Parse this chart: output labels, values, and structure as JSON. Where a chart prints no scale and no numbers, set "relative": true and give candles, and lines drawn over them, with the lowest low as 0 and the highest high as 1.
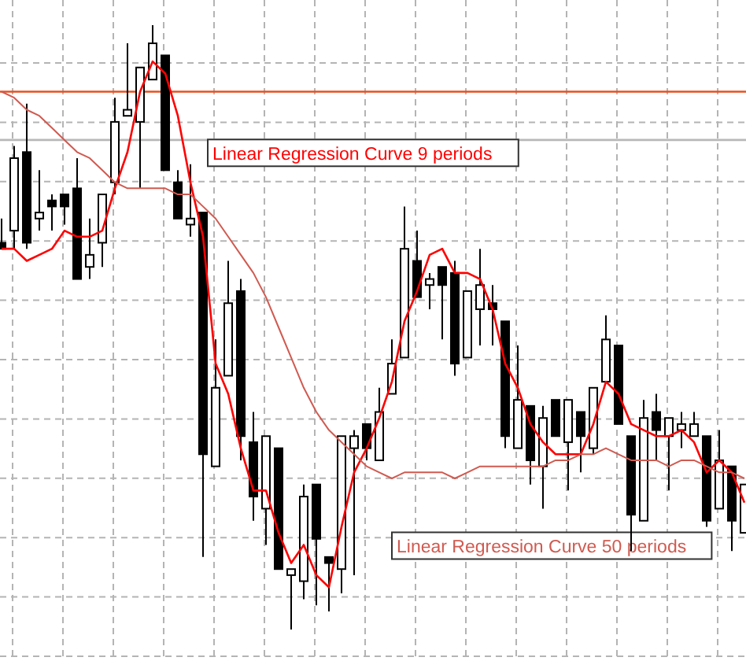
{
  "chart_data": {
    "type": "candlestick",
    "relative": true,
    "grid": true,
    "categories": [
      null,
      null,
      null,
      null,
      null,
      null,
      null,
      null,
      null,
      null,
      null,
      null,
      null,
      null,
      null,
      null,
      null,
      null,
      null,
      null,
      null,
      null,
      null,
      null,
      null,
      null,
      null,
      null,
      null,
      null,
      null,
      null,
      null,
      null,
      null,
      null,
      null,
      null,
      null,
      null,
      null,
      null,
      null,
      null,
      null,
      null,
      null,
      null,
      null,
      null,
      null,
      null,
      null,
      null,
      null,
      null,
      null,
      null,
      null,
      null
    ],
    "ohlc": [
      [
        0.64,
        0.68,
        0.63,
        0.63
      ],
      [
        0.66,
        0.8,
        0.63,
        0.78
      ],
      [
        0.79,
        0.87,
        0.63,
        0.64
      ],
      [
        0.68,
        0.76,
        0.66,
        0.69
      ],
      [
        0.71,
        0.72,
        0.66,
        0.7
      ],
      [
        0.72,
        0.72,
        0.67,
        0.7
      ],
      [
        0.73,
        0.78,
        0.58,
        0.58
      ],
      [
        0.6,
        0.68,
        0.58,
        0.62
      ],
      [
        0.64,
        0.72,
        0.6,
        0.72
      ],
      [
        0.74,
        0.88,
        0.72,
        0.84
      ],
      [
        0.85,
        0.97,
        0.85,
        0.86
      ],
      [
        0.84,
        0.93,
        0.73,
        0.93
      ],
      [
        0.91,
        1.0,
        0.91,
        0.97
      ],
      [
        0.95,
        0.95,
        0.76,
        0.76
      ],
      [
        0.74,
        0.76,
        0.68,
        0.68
      ],
      [
        0.67,
        0.77,
        0.65,
        0.68
      ],
      [
        0.69,
        0.69,
        0.12,
        0.29
      ],
      [
        0.27,
        0.48,
        0.27,
        0.4
      ],
      [
        0.42,
        0.61,
        0.42,
        0.54
      ],
      [
        0.56,
        0.58,
        0.28,
        0.32
      ],
      [
        0.31,
        0.36,
        0.18,
        0.22
      ],
      [
        0.2,
        0.32,
        0.14,
        0.32
      ],
      [
        0.3,
        0.3,
        0.1,
        0.1
      ],
      [
        0.09,
        0.1,
        0.0,
        0.1
      ],
      [
        0.08,
        0.24,
        0.05,
        0.22
      ],
      [
        0.24,
        0.24,
        0.04,
        0.15
      ],
      [
        0.12,
        0.12,
        0.03,
        0.11
      ],
      [
        0.1,
        0.32,
        0.06,
        0.32
      ],
      [
        0.3,
        0.33,
        0.09,
        0.32
      ],
      [
        0.34,
        0.34,
        0.28,
        0.3
      ],
      [
        0.28,
        0.4,
        0.28,
        0.36
      ],
      [
        0.39,
        0.48,
        0.39,
        0.44
      ],
      [
        0.45,
        0.7,
        0.45,
        0.63
      ],
      [
        0.61,
        0.66,
        0.55,
        0.55
      ],
      [
        0.57,
        0.59,
        0.53,
        0.58
      ],
      [
        0.6,
        0.6,
        0.48,
        0.57
      ],
      [
        0.59,
        0.61,
        0.42,
        0.44
      ],
      [
        0.45,
        0.56,
        0.45,
        0.56
      ],
      [
        0.53,
        0.63,
        0.47,
        0.57
      ],
      [
        0.54,
        0.57,
        0.47,
        0.53
      ],
      [
        0.51,
        0.51,
        0.3,
        0.32
      ],
      [
        0.3,
        0.47,
        0.3,
        0.38
      ],
      [
        0.37,
        0.37,
        0.24,
        0.28
      ],
      [
        0.27,
        0.37,
        0.2,
        0.35
      ],
      [
        0.38,
        0.38,
        0.32,
        0.32
      ],
      [
        0.31,
        0.38,
        0.23,
        0.38
      ],
      [
        0.36,
        0.36,
        0.26,
        0.32
      ],
      [
        0.3,
        0.4,
        0.29,
        0.4
      ],
      [
        0.41,
        0.52,
        0.41,
        0.48
      ],
      [
        0.47,
        0.47,
        0.34,
        0.34
      ],
      [
        0.32,
        0.32,
        0.13,
        0.19
      ],
      [
        0.18,
        0.38,
        0.18,
        0.35
      ],
      [
        0.36,
        0.39,
        0.28,
        0.33
      ],
      [
        0.32,
        0.35,
        0.23,
        0.35
      ],
      [
        0.33,
        0.36,
        0.3,
        0.34
      ],
      [
        0.32,
        0.36,
        0.32,
        0.34
      ],
      [
        0.32,
        0.32,
        0.17,
        0.18
      ],
      [
        0.2,
        0.33,
        0.2,
        0.28
      ],
      [
        0.27,
        0.27,
        0.13,
        0.18
      ],
      [
        0.16,
        0.24,
        0.16,
        0.24
      ]
    ],
    "series": [
      {
        "type": "line",
        "name": "Linear Regression Curve 9 periods",
        "color": "#ff0000",
        "values": [
          0.63,
          0.63,
          0.61,
          0.62,
          0.63,
          0.66,
          0.65,
          0.65,
          0.66,
          0.73,
          0.79,
          0.89,
          0.94,
          0.92,
          0.85,
          0.74,
          0.65,
          0.44,
          0.39,
          0.3,
          0.23,
          0.23,
          0.16,
          0.11,
          0.14,
          0.09,
          0.07,
          0.17,
          0.26,
          0.3,
          0.35,
          0.41,
          0.51,
          0.56,
          0.62,
          0.63,
          0.59,
          0.59,
          0.58,
          0.53,
          0.44,
          0.4,
          0.34,
          0.31,
          0.29,
          0.29,
          0.29,
          0.34,
          0.41,
          0.39,
          0.34,
          0.33,
          0.32,
          0.32,
          0.33,
          0.31,
          0.26,
          0.28,
          0.26,
          0.21
        ]
      },
      {
        "type": "line",
        "name": "Linear Regression Curve 50 periods",
        "color": "#d05a50",
        "values": [
          0.89,
          0.88,
          0.86,
          0.85,
          0.83,
          0.81,
          0.79,
          0.78,
          0.76,
          0.74,
          0.73,
          0.73,
          0.73,
          0.73,
          0.72,
          0.72,
          0.7,
          0.68,
          0.65,
          0.62,
          0.59,
          0.55,
          0.5,
          0.45,
          0.4,
          0.36,
          0.33,
          0.31,
          0.29,
          0.27,
          0.26,
          0.25,
          0.26,
          0.26,
          0.26,
          0.26,
          0.25,
          0.26,
          0.27,
          0.27,
          0.27,
          0.27,
          0.27,
          0.27,
          0.28,
          0.28,
          0.29,
          0.29,
          0.3,
          0.29,
          0.28,
          0.28,
          0.28,
          0.27,
          0.28,
          0.28,
          0.27,
          0.26,
          0.26,
          0.25
        ]
      }
    ],
    "ref_lines": [
      {
        "axis": "y",
        "value": 0.89,
        "color": "#e8501e"
      },
      {
        "axis": "y",
        "value": 0.81,
        "color": "#b8b8b8"
      }
    ]
  }
}
